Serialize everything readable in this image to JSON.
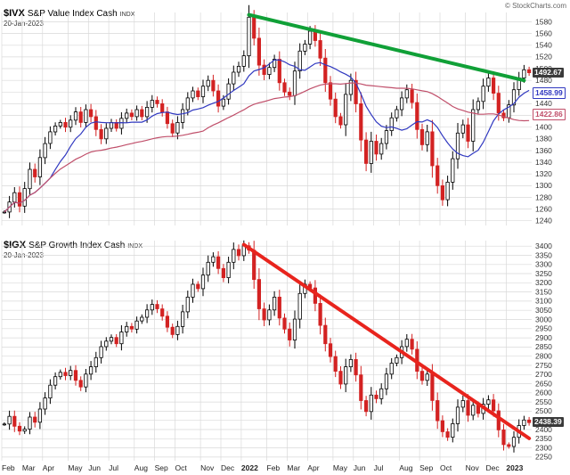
{
  "meta": {
    "copyright": "© StockCharts.com"
  },
  "colors": {
    "grid": "#d9d9d9",
    "tick_text": "#333333",
    "axis_text": "#222222",
    "candle_up": "#000000",
    "candle_down": "#d32222",
    "last_label_bg": "#3a3a3a",
    "last_label_fg": "#ffffff",
    "copyright": "#666666"
  },
  "x_axis": {
    "total_weeks": 104,
    "month_starts": [
      0,
      4,
      8,
      13,
      17,
      21,
      26,
      30,
      34,
      39,
      43,
      47,
      52,
      56,
      60,
      65,
      69,
      73,
      78,
      82,
      86,
      91,
      95,
      99
    ],
    "labels": [
      "Feb",
      "Mar",
      "Apr",
      "May",
      "Jun",
      "Jul",
      "Aug",
      "Sep",
      "Oct",
      "Nov",
      "Dec",
      "2022",
      "Feb",
      "Mar",
      "Apr",
      "May",
      "Jun",
      "Jul",
      "Aug",
      "Sep",
      "Oct",
      "Nov",
      "Dec",
      "2023"
    ],
    "bold": [
      false,
      false,
      false,
      false,
      false,
      false,
      false,
      false,
      false,
      false,
      false,
      true,
      false,
      false,
      false,
      false,
      false,
      false,
      false,
      false,
      false,
      false,
      false,
      true
    ]
  },
  "chart_data": [
    {
      "type": "candlestick",
      "symbol": "$IVX",
      "title": "S&P Value Index Cash",
      "exchange": "INDX",
      "date": "20-Jan-2023",
      "last_label": "1492.67",
      "ylim": [
        1232,
        1596
      ],
      "ytick_min": 1240,
      "ytick_max": 1580,
      "ytick_step": 20,
      "closes": [
        1255,
        1272,
        1288,
        1265,
        1295,
        1328,
        1315,
        1348,
        1372,
        1392,
        1402,
        1408,
        1400,
        1412,
        1426,
        1408,
        1430,
        1418,
        1396,
        1380,
        1398,
        1408,
        1398,
        1415,
        1424,
        1418,
        1430,
        1418,
        1434,
        1446,
        1440,
        1426,
        1406,
        1390,
        1408,
        1430,
        1450,
        1462,
        1452,
        1470,
        1480,
        1462,
        1436,
        1448,
        1474,
        1494,
        1504,
        1522,
        1588,
        1552,
        1506,
        1490,
        1502,
        1516,
        1476,
        1460,
        1454,
        1496,
        1530,
        1542,
        1564,
        1548,
        1518,
        1476,
        1448,
        1418,
        1404,
        1456,
        1480,
        1440,
        1378,
        1338,
        1376,
        1354,
        1372,
        1394,
        1416,
        1430,
        1450,
        1464,
        1442,
        1396,
        1370,
        1392,
        1334,
        1300,
        1276,
        1306,
        1346,
        1390,
        1404,
        1376,
        1430,
        1444,
        1470,
        1484,
        1458,
        1424,
        1416,
        1438,
        1464,
        1484,
        1498,
        1493
      ],
      "ma": [
        {
          "name": "50-day moving average",
          "window": 10,
          "color": "#3038c0",
          "last_label": "1458.99"
        },
        {
          "name": "200-day moving average",
          "window": 40,
          "color": "#c04f6a",
          "last_label": "1422.86"
        }
      ],
      "trendline": {
        "description": "downtrend resistance line",
        "color": "#10a037",
        "width": 4,
        "from_week": 48,
        "from_val": 1592,
        "to_week": 102,
        "to_val": 1480
      }
    },
    {
      "type": "candlestick",
      "symbol": "$IGX",
      "title": "S&P Growth Index Cash",
      "exchange": "INDX",
      "date": "20-Jan-2023",
      "last_label": "2438.39",
      "ylim": [
        2230,
        3430
      ],
      "ytick_min": 2250,
      "ytick_max": 3400,
      "ytick_step": 50,
      "closes": [
        2430,
        2472,
        2418,
        2392,
        2402,
        2468,
        2440,
        2512,
        2572,
        2642,
        2688,
        2712,
        2694,
        2722,
        2668,
        2632,
        2702,
        2742,
        2792,
        2852,
        2882,
        2902,
        2868,
        2932,
        2962,
        2948,
        2992,
        3012,
        3052,
        3082,
        3058,
        3018,
        2958,
        2918,
        2962,
        3042,
        3122,
        3192,
        3168,
        3242,
        3312,
        3342,
        3278,
        3228,
        3312,
        3382,
        3348,
        3402,
        3378,
        3218,
        3058,
        2998,
        3052,
        3122,
        3008,
        2948,
        2888,
        3002,
        3142,
        3192,
        3172,
        3088,
        2968,
        2868,
        2798,
        2718,
        2648,
        2742,
        2782,
        2698,
        2558,
        2498,
        2588,
        2568,
        2622,
        2702,
        2762,
        2792,
        2852,
        2892,
        2838,
        2718,
        2668,
        2702,
        2558,
        2448,
        2388,
        2358,
        2432,
        2522,
        2558,
        2478,
        2532,
        2488,
        2538,
        2562,
        2502,
        2398,
        2318,
        2308,
        2358,
        2422,
        2452,
        2438
      ],
      "trendline": {
        "description": "downtrend resistance line",
        "color": "#e8241d",
        "width": 4,
        "from_week": 47,
        "from_val": 3408,
        "to_week": 103,
        "to_val": 2352
      }
    }
  ]
}
